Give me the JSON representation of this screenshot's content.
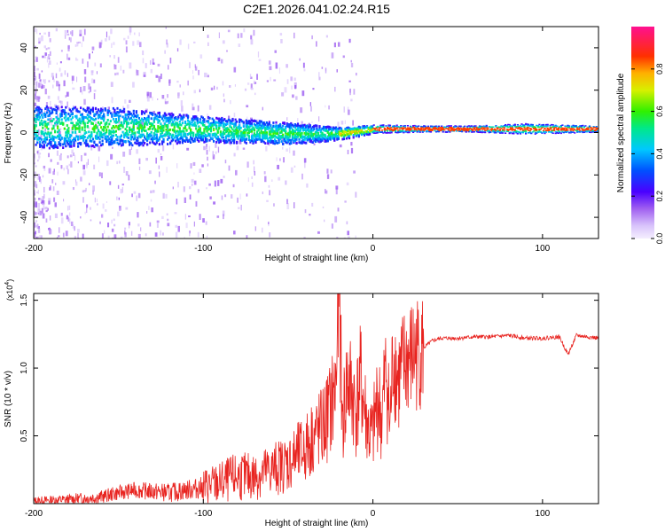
{
  "title": "C2E1.2026.041.02.24.R15",
  "chart_data": [
    {
      "type": "heatmap",
      "xlabel": "Height of straight line (km)",
      "ylabel": "Frequency (Hz)",
      "xlim": [
        -200,
        133
      ],
      "ylim": [
        -50,
        50
      ],
      "xticks": [
        -200,
        -100,
        0,
        100
      ],
      "yticks": [
        -40,
        -20,
        0,
        20,
        40
      ],
      "colorbar": {
        "label": "Normalized spectral amplitude",
        "range": [
          0,
          1
        ],
        "ticks": [
          "0.0",
          "0.2",
          "0.4",
          "0.6",
          "0.8"
        ]
      },
      "ridge": {
        "description_free": true,
        "x": [
          -200,
          -150,
          -100,
          -50,
          -20,
          0,
          30,
          60,
          90,
          133
        ],
        "center_freq": [
          3,
          3,
          2,
          0,
          0,
          2,
          2,
          2,
          2,
          2
        ],
        "halfwidth": [
          10,
          9,
          6,
          5,
          3,
          2,
          1.5,
          1.5,
          2.5,
          1.5
        ]
      }
    },
    {
      "type": "line",
      "xlabel": "Height of straight line (km)",
      "ylabel": "SNR (10 * v/v)",
      "y_multiplier": "(x10^4)",
      "xlim": [
        -200,
        133
      ],
      "ylim": [
        0,
        1.55
      ],
      "xticks": [
        -200,
        -100,
        0,
        100
      ],
      "yticks": [
        "0.5",
        "1.0",
        "1.5"
      ],
      "color": "#e8231f",
      "x": [
        -200,
        -180,
        -160,
        -150,
        -140,
        -120,
        -110,
        -100,
        -90,
        -80,
        -70,
        -60,
        -50,
        -40,
        -35,
        -30,
        -25,
        -22,
        -20,
        -18,
        -15,
        -12,
        -10,
        -7,
        -5,
        -2,
        0,
        3,
        5,
        8,
        10,
        12,
        15,
        20,
        25,
        30,
        35,
        40,
        50,
        60,
        70,
        80,
        90,
        100,
        110,
        115,
        120,
        133
      ],
      "y": [
        0.02,
        0.03,
        0.05,
        0.08,
        0.1,
        0.08,
        0.1,
        0.12,
        0.15,
        0.2,
        0.2,
        0.25,
        0.3,
        0.4,
        0.5,
        0.55,
        0.7,
        0.85,
        1.55,
        0.6,
        0.9,
        0.8,
        0.7,
        0.9,
        0.7,
        0.5,
        0.5,
        0.8,
        0.6,
        1.0,
        0.55,
        1.1,
        0.9,
        1.05,
        1.1,
        1.15,
        1.2,
        1.22,
        1.22,
        1.23,
        1.23,
        1.24,
        1.22,
        1.22,
        1.23,
        1.1,
        1.24,
        1.22
      ]
    }
  ]
}
